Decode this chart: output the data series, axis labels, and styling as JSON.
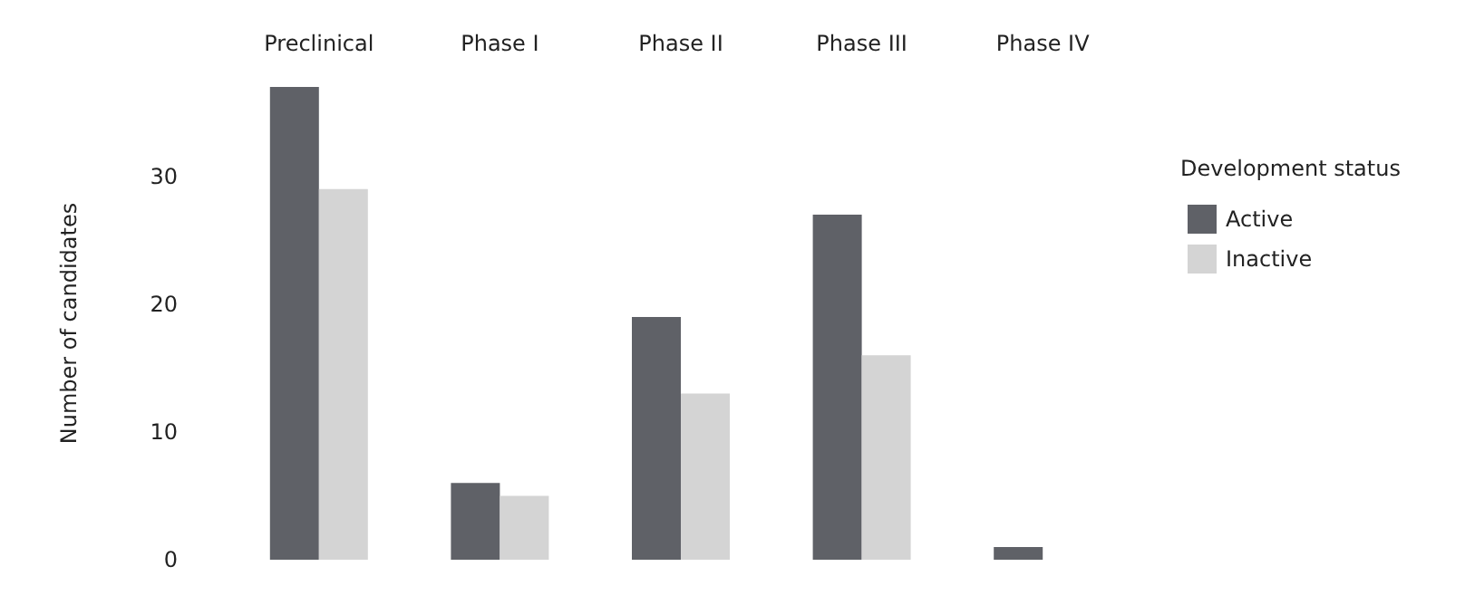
{
  "chart_data": {
    "type": "bar",
    "ylabel": "Number of candidates",
    "legend_title": "Development status",
    "categories": [
      "Preclinical",
      "Phase I",
      "Phase II",
      "Phase III",
      "Phase IV"
    ],
    "series": [
      {
        "name": "Active",
        "color": "#5f6167",
        "values": [
          37,
          6,
          19,
          27,
          1
        ]
      },
      {
        "name": "Inactive",
        "color": "#d4d4d4",
        "values": [
          29,
          5,
          13,
          16,
          null
        ]
      }
    ],
    "ylim": [
      0,
      37
    ],
    "yticks": [
      0,
      10,
      20,
      30
    ],
    "grid": false,
    "legend": "right"
  }
}
